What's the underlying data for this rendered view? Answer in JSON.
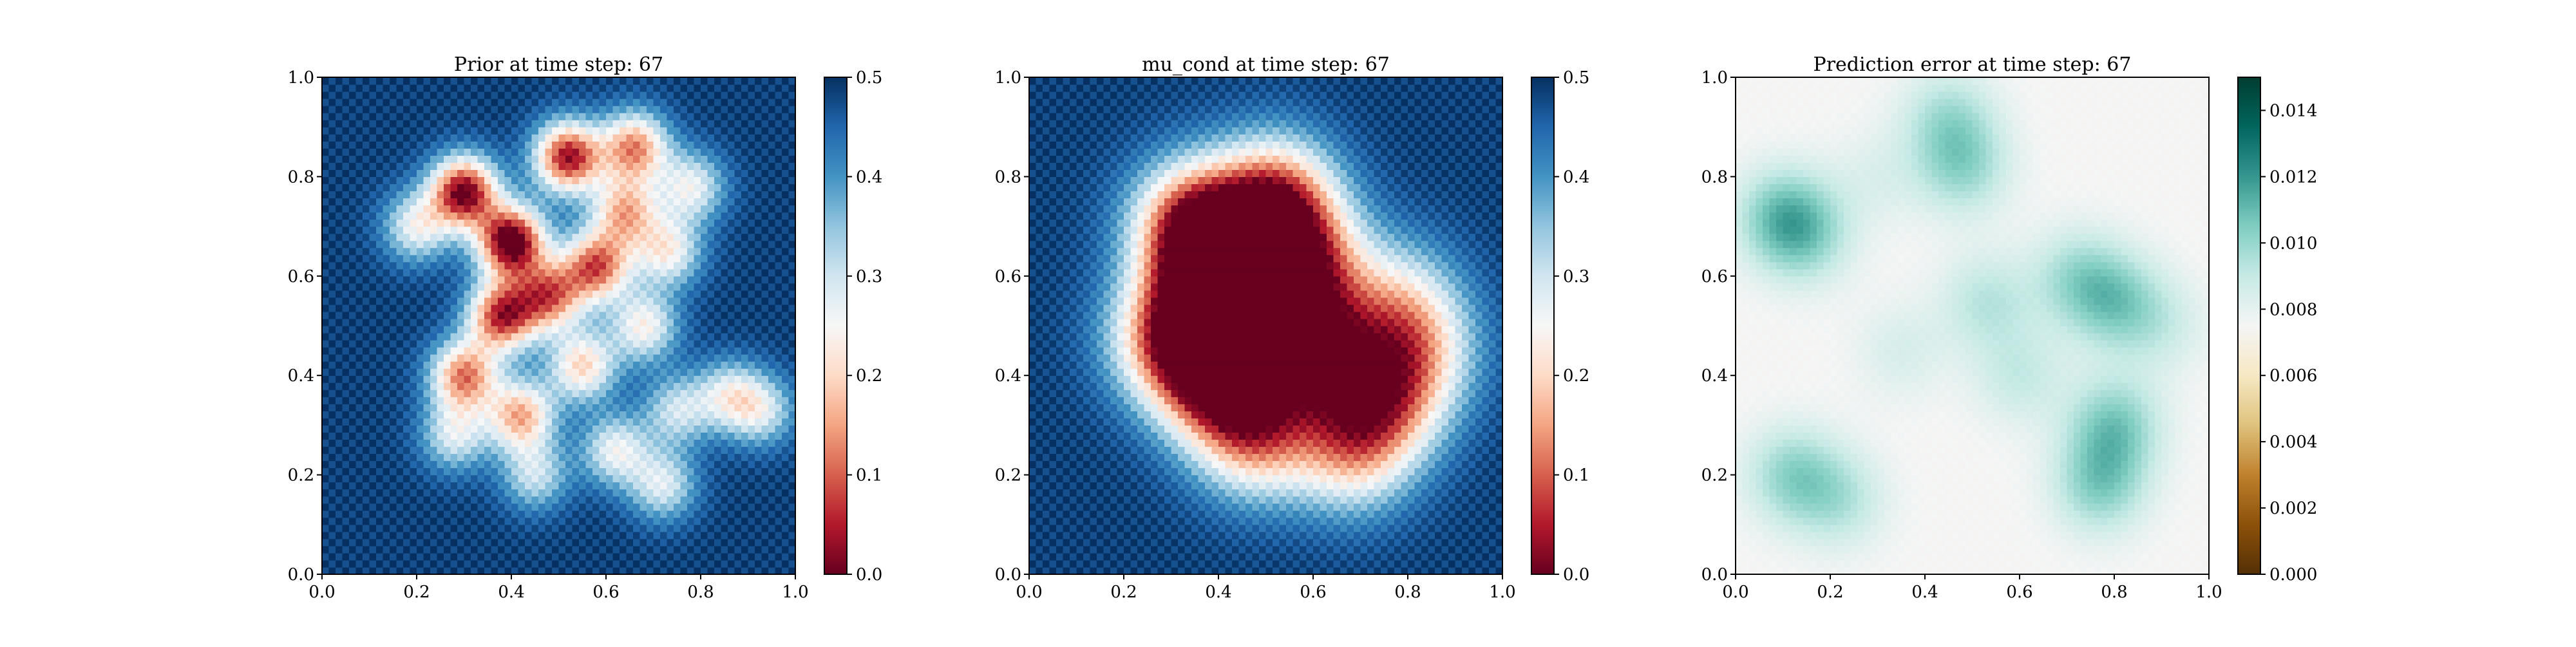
{
  "figure": {
    "panel_count": 3
  },
  "chart_data": [
    {
      "type": "heatmap",
      "title": "Prior at time step: 67",
      "xlabel": "",
      "ylabel": "",
      "xlim": [
        0,
        1
      ],
      "ylim": [
        0,
        1
      ],
      "x_ticks": [
        "0.0",
        "0.2",
        "0.4",
        "0.6",
        "0.8",
        "1.0"
      ],
      "y_ticks": [
        "0.0",
        "0.2",
        "0.4",
        "0.6",
        "0.8",
        "1.0"
      ],
      "grid": false,
      "colormap": "RdBu",
      "colorbar": {
        "range": [
          0,
          0.5
        ],
        "ticks": [
          "0.0",
          "0.1",
          "0.2",
          "0.3",
          "0.4",
          "0.5"
        ]
      },
      "field": {
        "baseline": 0.5,
        "sigma": 0.05,
        "centers": [
          [
            0.4,
            0.67,
            0.52
          ],
          [
            0.3,
            0.77,
            0.48
          ],
          [
            0.52,
            0.84,
            0.45
          ],
          [
            0.38,
            0.52,
            0.42
          ],
          [
            0.58,
            0.62,
            0.38
          ],
          [
            0.66,
            0.86,
            0.35
          ],
          [
            0.2,
            0.7,
            0.22
          ],
          [
            0.3,
            0.4,
            0.36
          ],
          [
            0.42,
            0.32,
            0.32
          ],
          [
            0.55,
            0.42,
            0.28
          ],
          [
            0.68,
            0.5,
            0.24
          ],
          [
            0.73,
            0.65,
            0.24
          ],
          [
            0.78,
            0.78,
            0.22
          ],
          [
            0.86,
            0.36,
            0.2
          ],
          [
            0.93,
            0.33,
            0.18
          ],
          [
            0.62,
            0.25,
            0.22
          ],
          [
            0.72,
            0.18,
            0.2
          ],
          [
            0.45,
            0.2,
            0.18
          ],
          [
            0.28,
            0.28,
            0.2
          ],
          [
            0.64,
            0.73,
            0.3
          ],
          [
            0.48,
            0.56,
            0.35
          ],
          [
            0.75,
            0.33,
            0.18
          ]
        ],
        "darken_cell_value": 0.06
      }
    },
    {
      "type": "heatmap",
      "title": "mu_cond at time step: 67",
      "xlabel": "",
      "ylabel": "",
      "xlim": [
        0,
        1
      ],
      "ylim": [
        0,
        1
      ],
      "x_ticks": [
        "0.0",
        "0.2",
        "0.4",
        "0.6",
        "0.8",
        "1.0"
      ],
      "y_ticks": [
        "0.0",
        "0.2",
        "0.4",
        "0.6",
        "0.8",
        "1.0"
      ],
      "grid": false,
      "colormap": "RdBu",
      "colorbar": {
        "range": [
          0,
          0.5
        ],
        "ticks": [
          "0.0",
          "0.1",
          "0.2",
          "0.3",
          "0.4",
          "0.5"
        ]
      },
      "field": {
        "baseline": 0.5,
        "sigma": 0.09,
        "centers": [
          [
            0.42,
            0.58,
            0.55
          ],
          [
            0.35,
            0.7,
            0.45
          ],
          [
            0.52,
            0.75,
            0.4
          ],
          [
            0.4,
            0.4,
            0.45
          ],
          [
            0.6,
            0.45,
            0.4
          ],
          [
            0.75,
            0.35,
            0.28
          ],
          [
            0.68,
            0.25,
            0.25
          ],
          [
            0.48,
            0.28,
            0.3
          ],
          [
            0.3,
            0.48,
            0.35
          ],
          [
            0.58,
            0.62,
            0.35
          ],
          [
            0.82,
            0.45,
            0.2
          ],
          [
            0.78,
            0.55,
            0.18
          ]
        ],
        "darken_cell_value": 0.06
      }
    },
    {
      "type": "heatmap",
      "title": "Prediction error at time step: 67",
      "xlabel": "",
      "ylabel": "",
      "xlim": [
        0,
        1
      ],
      "ylim": [
        0,
        1
      ],
      "x_ticks": [
        "0.0",
        "0.2",
        "0.4",
        "0.6",
        "0.8",
        "1.0"
      ],
      "y_ticks": [
        "0.0",
        "0.2",
        "0.4",
        "0.6",
        "0.8",
        "1.0"
      ],
      "grid": false,
      "colormap": "BrBG",
      "colorbar": {
        "range": [
          0,
          0.015
        ],
        "ticks": [
          "0.000",
          "0.002",
          "0.004",
          "0.006",
          "0.008",
          "0.010",
          "0.012",
          "0.014"
        ]
      },
      "field": {
        "baseline": 0.0075,
        "sigma": 0.07,
        "centers": [
          [
            0.1,
            0.72,
            -0.003
          ],
          [
            0.15,
            0.68,
            -0.002
          ],
          [
            0.48,
            0.82,
            -0.0024
          ],
          [
            0.45,
            0.92,
            -0.002
          ],
          [
            0.8,
            0.55,
            -0.0026
          ],
          [
            0.72,
            0.6,
            -0.002
          ],
          [
            0.53,
            0.55,
            -0.0018
          ],
          [
            0.8,
            0.3,
            -0.003
          ],
          [
            0.77,
            0.18,
            -0.0028
          ],
          [
            0.12,
            0.2,
            -0.0026
          ],
          [
            0.22,
            0.15,
            -0.0018
          ],
          [
            0.6,
            0.4,
            -0.0015
          ],
          [
            0.35,
            0.45,
            -0.001
          ],
          [
            0.9,
            0.5,
            -0.0012
          ],
          [
            0.3,
            0.8,
            -0.0008
          ]
        ],
        "darken_cell_value": 0.0002
      }
    }
  ]
}
